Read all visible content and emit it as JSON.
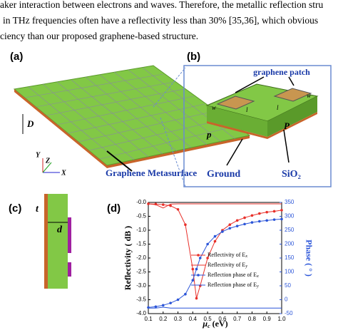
{
  "text_lines": [
    "aker interaction between electrons and waves. Therefore, the metallic reflection stru",
    "in THz frequencies often have a reflectivity less than 30% [35,36], which obvious",
    "ciency than our proposed graphene-based structure."
  ],
  "panel_a": {
    "label": "(a)",
    "size": "D",
    "axes": [
      "Y",
      "Z",
      "X"
    ],
    "caption": "Graphene Metasurface"
  },
  "panel_b": {
    "label": "(b)",
    "patch": "graphene patch",
    "period": "p",
    "period2": "P",
    "ground": "Ground",
    "substrate": "SiO₂",
    "widths": [
      "w",
      "l",
      "l",
      "w"
    ]
  },
  "panel_c": {
    "label": "(c)",
    "thickness": "t",
    "depth": "d"
  },
  "chart_data": {
    "type": "line",
    "label": "(d)",
    "xlabel": [
      "μ",
      "c",
      " (eV)"
    ],
    "ylabel": "Reflectivity ( dB )",
    "y2label": "Phase ( ° )",
    "x": [
      0.1,
      0.15,
      0.2,
      0.25,
      0.3,
      0.35,
      0.4,
      0.425,
      0.45,
      0.5,
      0.55,
      0.6,
      0.65,
      0.7,
      0.75,
      0.8,
      0.85,
      0.9,
      0.95,
      1.0
    ],
    "xlim": [
      0.1,
      1.0
    ],
    "xticks": [
      0.1,
      0.2,
      0.3,
      0.4,
      0.5,
      0.6,
      0.7,
      0.8,
      0.9,
      {
        "value": 1,
        "label": "1.0"
      }
    ],
    "ylim": [
      -4,
      0
    ],
    "yticks": [
      {
        "value": -4,
        "label": "-4.0"
      },
      -3.5,
      {
        "value": -3,
        "label": "-3.0"
      },
      -2.5,
      {
        "value": -2,
        "label": "-2.0"
      },
      -1.5,
      {
        "value": -1,
        "label": "-1.0"
      },
      -0.5,
      {
        "value": 0,
        "label": "-0.0"
      }
    ],
    "y2lim": [
      -50,
      350
    ],
    "y2ticks": [
      -50,
      0,
      50,
      100,
      150,
      200,
      250,
      300,
      350
    ],
    "series": [
      {
        "name": "Reflectivity of E",
        "sub": "x",
        "color": "#e8302a",
        "marker": true,
        "values": [
          -0.05,
          -0.06,
          -0.08,
          -0.12,
          -0.25,
          -0.8,
          -2.4,
          -3.45,
          -3.0,
          -2.0,
          -1.4,
          -1.0,
          -0.8,
          -0.65,
          -0.55,
          -0.47,
          -0.4,
          -0.35,
          -0.32,
          -0.28
        ]
      },
      {
        "name": "Reflectivity of E",
        "sub": "y",
        "color": "#e8302a",
        "marker": false,
        "values": [
          -0.05,
          -0.08,
          -0.2,
          -0.06,
          -0.05,
          -0.05,
          -0.05,
          -0.05,
          -0.05,
          -0.05,
          -0.05,
          -0.05,
          -0.05,
          -0.05,
          -0.05,
          -0.05,
          -0.05,
          -0.05,
          -0.05,
          -0.05
        ]
      },
      {
        "name": "Reflection phase of E",
        "sub": "x",
        "color": "#2b55d8",
        "marker": true,
        "axis": "y2",
        "values": [
          -28,
          -25,
          -20,
          -12,
          0,
          20,
          70,
          110,
          150,
          200,
          228,
          245,
          257,
          265,
          272,
          278,
          282,
          285,
          288,
          290
        ]
      },
      {
        "name": "Reflection phase of E",
        "sub": "y",
        "color": "#2b55d8",
        "marker": false,
        "axis": "y2",
        "values": [
          -30,
          -30,
          -27,
          -30,
          -30,
          -30,
          -30,
          -30,
          -30,
          -30,
          -30,
          -30,
          -30,
          -30,
          -30,
          -30,
          -30,
          -30,
          -30,
          -30
        ]
      }
    ]
  }
}
